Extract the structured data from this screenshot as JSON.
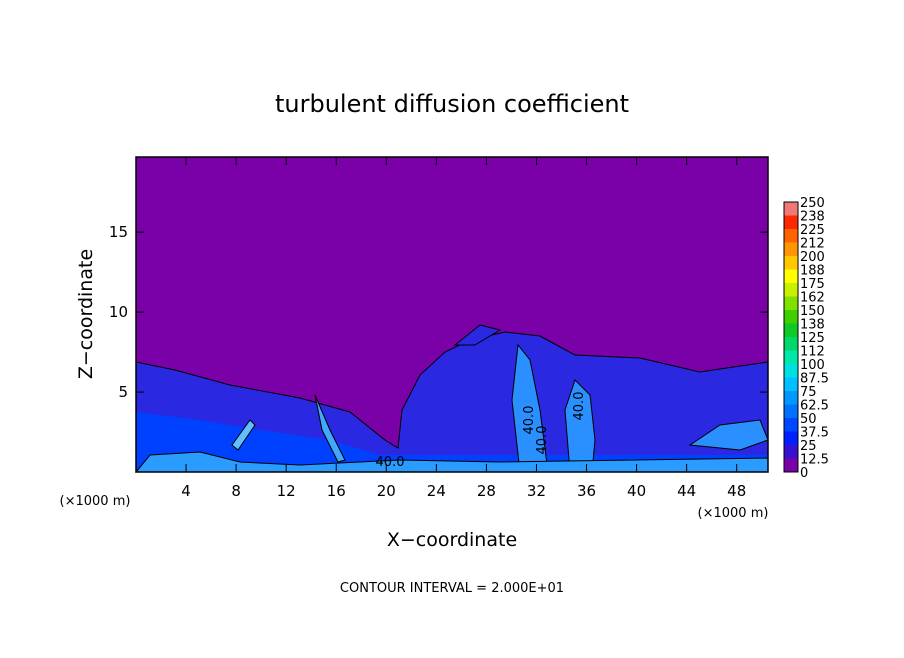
{
  "chart_data": {
    "type": "contour",
    "title": "turbulent diffusion coefficient",
    "x_label": "X−coordinate",
    "y_label": "Z−coordinate",
    "x_unit_left": "(×1000 m)",
    "x_unit_right": "(×1000 m)",
    "footer": "CONTOUR INTERVAL = 2.000E+01",
    "xlim": [
      0,
      50.5
    ],
    "ylim": [
      0,
      19.7
    ],
    "xticks": [
      4,
      8,
      12,
      16,
      20,
      24,
      28,
      32,
      36,
      40,
      44,
      48
    ],
    "yticks": [
      5,
      10,
      15
    ],
    "contour_labels": [
      "40.0",
      "40.0",
      "40.0",
      "40.0"
    ],
    "colorbar": {
      "levels": [
        0,
        12.5,
        25,
        37.5,
        50,
        62.5,
        75,
        87.5,
        100,
        112,
        125,
        138,
        150,
        162,
        175,
        188,
        200,
        212,
        225,
        238,
        250
      ],
      "colors": [
        "#7a00a8",
        "#3a10d0",
        "#0020ff",
        "#0048ff",
        "#0070ff",
        "#0098ff",
        "#00c0ff",
        "#00e0e0",
        "#00e8a8",
        "#00d868",
        "#10c828",
        "#40d000",
        "#80e000",
        "#c8f000",
        "#ffff00",
        "#ffc800",
        "#ff9600",
        "#ff6400",
        "#ff2800",
        "#f07878"
      ]
    }
  }
}
